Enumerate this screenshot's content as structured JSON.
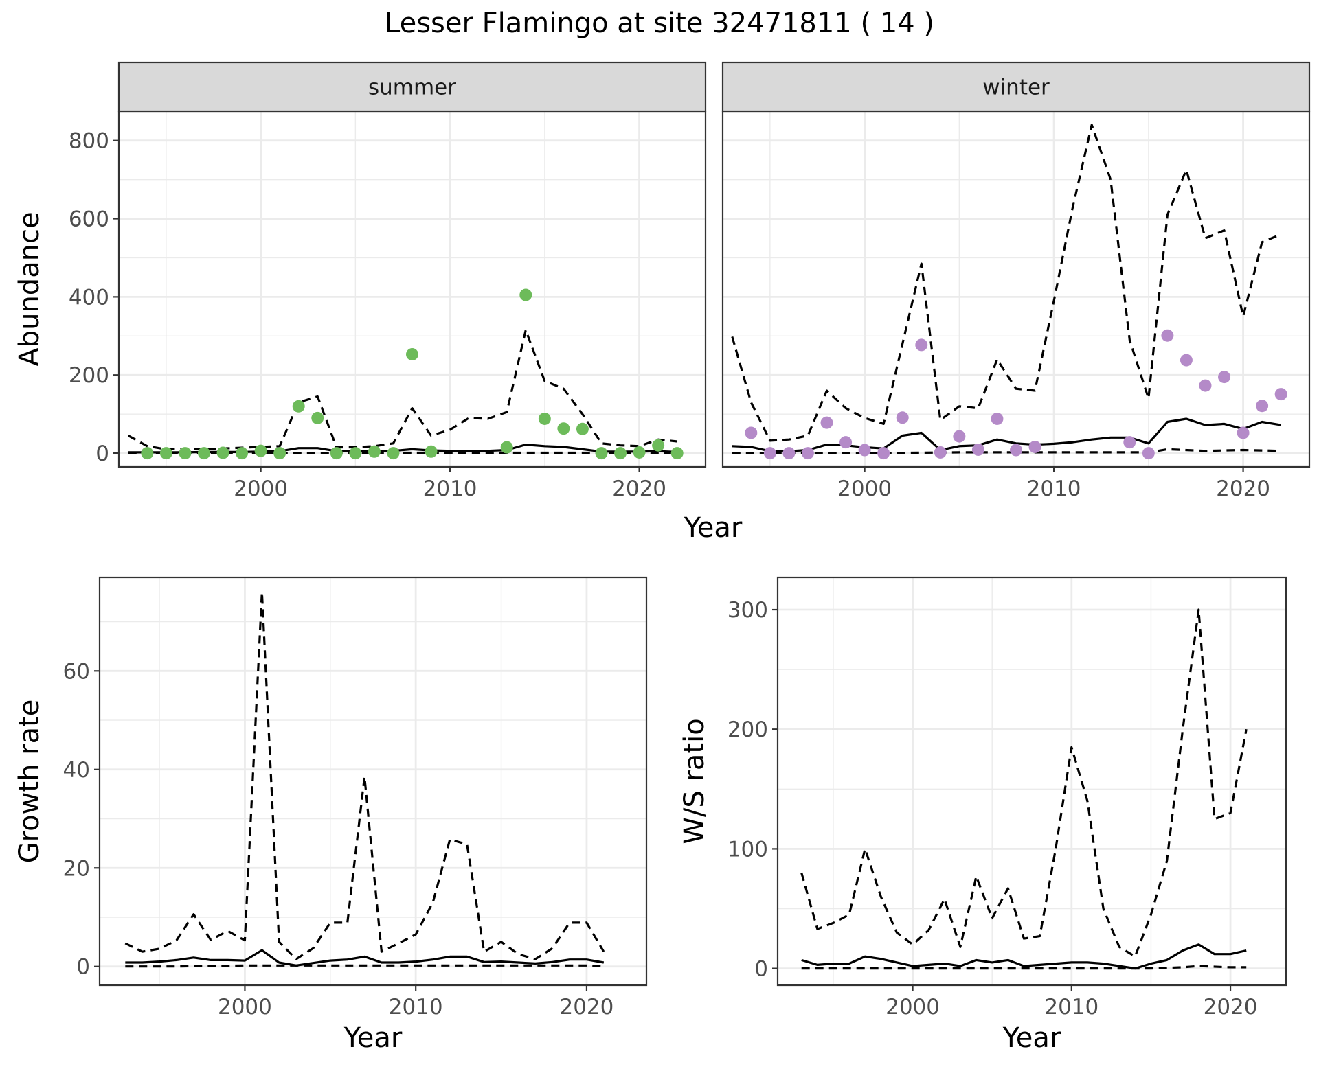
{
  "figure": {
    "title": "Lesser Flamingo at site 32471811 ( 14 )",
    "abundance_x_label": "Year"
  },
  "colors": {
    "summer_points": "#6dbb5a",
    "winter_points": "#b48ac8",
    "lines": "#000000",
    "strip_bg": "#d9d9d9",
    "grid": "#ebebeb"
  },
  "chart_data": [
    {
      "type": "scatter",
      "panel": "summer",
      "strip_label": "summer",
      "ylabel": "Abundance",
      "xlabel": "",
      "xlim": [
        1992.5,
        2023.5
      ],
      "ylim": [
        -35,
        875
      ],
      "x_ticks": [
        2000,
        2010,
        2020
      ],
      "y_ticks": [
        0,
        200,
        400,
        600,
        800
      ],
      "grid": true,
      "points": {
        "x": [
          1994,
          1995,
          1996,
          1997,
          1998,
          1999,
          2000,
          2001,
          2002,
          2003,
          2004,
          2005,
          2006,
          2007,
          2008,
          2009,
          2013,
          2014,
          2015,
          2016,
          2017,
          2018,
          2019,
          2020,
          2021,
          2022
        ],
        "y": [
          0,
          0,
          0,
          0,
          1,
          0,
          6,
          0,
          120,
          90,
          0,
          0,
          4,
          0,
          253,
          4,
          15,
          405,
          88,
          63,
          62,
          0,
          0,
          2,
          20,
          0
        ]
      },
      "lines": [
        {
          "style": "solid",
          "x": [
            1993,
            1994,
            1995,
            1996,
            1997,
            1998,
            1999,
            2000,
            2001,
            2002,
            2003,
            2004,
            2005,
            2006,
            2007,
            2008,
            2009,
            2010,
            2011,
            2012,
            2013,
            2014,
            2015,
            2016,
            2017,
            2018,
            2019,
            2020,
            2021,
            2022
          ],
          "y": [
            2,
            2,
            2,
            2,
            3,
            3,
            3,
            4,
            5,
            13,
            13,
            5,
            5,
            6,
            6,
            10,
            7,
            6,
            6,
            6,
            8,
            22,
            18,
            16,
            10,
            4,
            4,
            4,
            5,
            3
          ]
        },
        {
          "style": "dashed",
          "x": [
            1993,
            1994,
            1995,
            1996,
            1997,
            1998,
            1999,
            2000,
            2001,
            2002,
            2003,
            2004,
            2005,
            2006,
            2007,
            2008,
            2009,
            2010,
            2011,
            2012,
            2013,
            2014,
            2015,
            2016,
            2017,
            2018,
            2019,
            2020,
            2021,
            2022
          ],
          "y": [
            45,
            18,
            10,
            10,
            10,
            12,
            14,
            16,
            18,
            130,
            145,
            15,
            15,
            18,
            25,
            115,
            45,
            60,
            90,
            88,
            105,
            315,
            185,
            165,
            100,
            25,
            20,
            18,
            35,
            30
          ]
        },
        {
          "style": "dashed",
          "x": [
            1993,
            1996,
            2000,
            2005,
            2010,
            2015,
            2020,
            2022
          ],
          "y": [
            0,
            0,
            0,
            1,
            1,
            1,
            1,
            1
          ]
        }
      ]
    },
    {
      "type": "scatter",
      "panel": "winter",
      "strip_label": "winter",
      "ylabel": "",
      "xlabel": "",
      "xlim": [
        1992.5,
        2023.5
      ],
      "ylim": [
        -35,
        875
      ],
      "x_ticks": [
        2000,
        2010,
        2020
      ],
      "y_ticks": [
        0,
        200,
        400,
        600,
        800
      ],
      "grid": true,
      "points": {
        "x": [
          1994,
          1995,
          1996,
          1997,
          1998,
          1999,
          2000,
          2001,
          2002,
          2003,
          2004,
          2005,
          2006,
          2007,
          2008,
          2009,
          2014,
          2015,
          2016,
          2017,
          2018,
          2019,
          2020,
          2021,
          2022
        ],
        "y": [
          52,
          0,
          0,
          0,
          78,
          28,
          8,
          0,
          91,
          277,
          2,
          43,
          9,
          88,
          8,
          16,
          28,
          0,
          301,
          238,
          173,
          195,
          52,
          121,
          151
        ]
      },
      "lines": [
        {
          "style": "solid",
          "x": [
            1993,
            1994,
            1995,
            1996,
            1997,
            1998,
            1999,
            2000,
            2001,
            2002,
            2003,
            2004,
            2005,
            2006,
            2007,
            2008,
            2009,
            2010,
            2011,
            2012,
            2013,
            2014,
            2015,
            2016,
            2017,
            2018,
            2019,
            2020,
            2021,
            2022
          ],
          "y": [
            18,
            16,
            5,
            5,
            8,
            22,
            20,
            15,
            12,
            45,
            52,
            8,
            18,
            20,
            35,
            25,
            22,
            24,
            28,
            35,
            40,
            40,
            25,
            80,
            88,
            72,
            75,
            62,
            80,
            72
          ]
        },
        {
          "style": "dashed",
          "x": [
            1993,
            1994,
            1995,
            1996,
            1997,
            1998,
            1999,
            2000,
            2001,
            2002,
            2003,
            2004,
            2005,
            2006,
            2007,
            2008,
            2009,
            2010,
            2011,
            2012,
            2013,
            2014,
            2015,
            2016,
            2017,
            2018,
            2019,
            2020,
            2021,
            2022
          ],
          "y": [
            298,
            130,
            32,
            35,
            45,
            160,
            115,
            90,
            75,
            280,
            485,
            85,
            120,
            115,
            240,
            165,
            160,
            390,
            630,
            840,
            700,
            290,
            140,
            610,
            725,
            550,
            570,
            350,
            540,
            560
          ]
        },
        {
          "style": "dashed",
          "x": [
            1993,
            1996,
            2000,
            2005,
            2010,
            2015,
            2016,
            2018,
            2020,
            2022
          ],
          "y": [
            0,
            0,
            0,
            2,
            2,
            2,
            10,
            6,
            8,
            6
          ]
        }
      ]
    },
    {
      "type": "line",
      "panel": "growth",
      "ylabel": "Growth rate",
      "xlabel": "Year",
      "xlim": [
        1991.5,
        2023.5
      ],
      "ylim": [
        -3.8,
        79
      ],
      "x_ticks": [
        2000,
        2010,
        2020
      ],
      "y_ticks": [
        0,
        20,
        40,
        60
      ],
      "grid": true,
      "lines": [
        {
          "style": "solid",
          "x": [
            1993,
            1994,
            1995,
            1996,
            1997,
            1998,
            1999,
            2000,
            2001,
            2002,
            2003,
            2004,
            2005,
            2006,
            2007,
            2008,
            2009,
            2010,
            2011,
            2012,
            2013,
            2014,
            2015,
            2016,
            2017,
            2018,
            2019,
            2020,
            2021
          ],
          "y": [
            0.8,
            0.8,
            1.0,
            1.3,
            1.8,
            1.3,
            1.3,
            1.2,
            3.3,
            0.8,
            0.2,
            0.7,
            1.2,
            1.4,
            2.0,
            0.8,
            0.8,
            1.0,
            1.4,
            2.0,
            2.0,
            0.9,
            1.0,
            0.8,
            0.6,
            0.9,
            1.4,
            1.4,
            0.8
          ]
        },
        {
          "style": "dashed",
          "x": [
            1993,
            1994,
            1995,
            1996,
            1997,
            1998,
            1999,
            2000,
            2001,
            2002,
            2003,
            2004,
            2005,
            2006,
            2007,
            2008,
            2009,
            2010,
            2011,
            2012,
            2013,
            2014,
            2015,
            2016,
            2017,
            2018,
            2019,
            2020,
            2021
          ],
          "y": [
            4.7,
            3.0,
            3.6,
            5.3,
            10.6,
            5.4,
            7.2,
            5.3,
            76.0,
            5.0,
            1.5,
            3.7,
            8.9,
            8.9,
            38.5,
            3.0,
            4.7,
            6.5,
            13.0,
            25.8,
            24.8,
            3.0,
            5.0,
            2.5,
            1.5,
            3.7,
            8.9,
            8.9,
            3.0
          ]
        },
        {
          "style": "dashed",
          "x": [
            1993,
            1996,
            2000,
            2005,
            2010,
            2015,
            2020,
            2021
          ],
          "y": [
            0,
            0,
            0.2,
            0.2,
            0.2,
            0.2,
            0.2,
            0
          ]
        }
      ]
    },
    {
      "type": "line",
      "panel": "ratio",
      "ylabel": "W/S ratio",
      "xlabel": "Year",
      "xlim": [
        1991.5,
        2023.5
      ],
      "ylim": [
        -14,
        327
      ],
      "x_ticks": [
        2000,
        2010,
        2020
      ],
      "y_ticks": [
        0,
        100,
        200,
        300
      ],
      "grid": true,
      "lines": [
        {
          "style": "solid",
          "x": [
            1993,
            1994,
            1995,
            1996,
            1997,
            1998,
            1999,
            2000,
            2001,
            2002,
            2003,
            2004,
            2005,
            2006,
            2007,
            2008,
            2009,
            2010,
            2011,
            2012,
            2013,
            2014,
            2015,
            2016,
            2017,
            2018,
            2019,
            2020,
            2021
          ],
          "y": [
            7,
            3,
            4,
            4,
            10,
            8,
            5,
            2,
            3,
            4,
            2,
            7,
            5,
            7,
            2,
            3,
            4,
            5,
            5,
            4,
            2,
            0,
            4,
            7,
            15,
            20,
            12,
            12,
            15
          ]
        },
        {
          "style": "dashed",
          "x": [
            1993,
            1994,
            1995,
            1996,
            1997,
            1998,
            1999,
            2000,
            2001,
            2002,
            2003,
            2004,
            2005,
            2006,
            2007,
            2008,
            2009,
            2010,
            2011,
            2012,
            2013,
            2014,
            2015,
            2016,
            2017,
            2018,
            2019,
            2020,
            2021
          ],
          "y": [
            80,
            33,
            38,
            45,
            100,
            60,
            30,
            20,
            32,
            58,
            18,
            77,
            42,
            67,
            25,
            27,
            100,
            185,
            140,
            50,
            18,
            10,
            45,
            90,
            200,
            300,
            125,
            130,
            200
          ]
        },
        {
          "style": "dashed",
          "x": [
            1993,
            1996,
            2000,
            2005,
            2010,
            2015,
            2017,
            2018,
            2020,
            2021
          ],
          "y": [
            0,
            0,
            0,
            0,
            0,
            0,
            1,
            2,
            1,
            1
          ]
        }
      ]
    }
  ]
}
